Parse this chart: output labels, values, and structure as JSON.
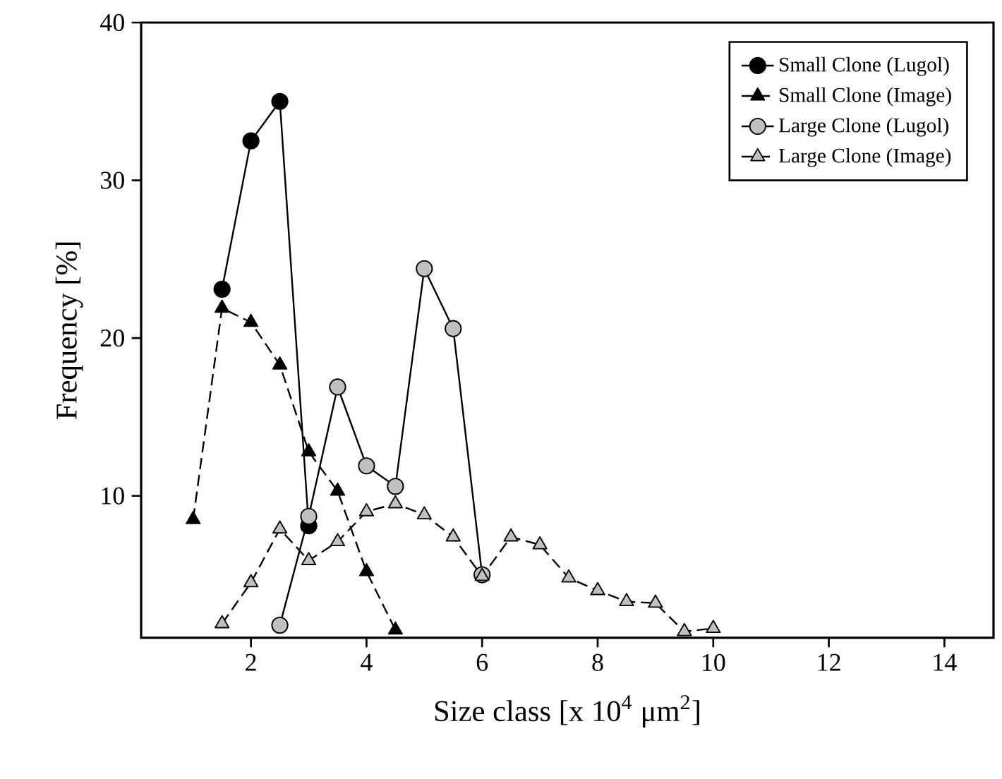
{
  "chart_data": {
    "type": "line",
    "xlabel": "Size class   [x 10$^{4}$ μm$^{2}$]",
    "ylabel": "Frequency   [%]",
    "xlim": [
      0.1,
      14.85
    ],
    "ylim": [
      1,
      40
    ],
    "xticks": [
      2,
      4,
      6,
      8,
      10,
      12,
      14
    ],
    "yticks": [
      10,
      20,
      30,
      40
    ],
    "legend": "top right",
    "grid": false,
    "series": [
      {
        "name": "Small Clone (Lugol)",
        "color": "#000000",
        "marker": "circle",
        "line_style": "solid",
        "x": [
          1.5,
          2,
          2.5,
          3
        ],
        "values": [
          23.1,
          32.5,
          35.0,
          8.1
        ]
      },
      {
        "name": "Small Clone (Image)",
        "color": "#000000",
        "marker": "triangle",
        "line_style": "dashed",
        "x": [
          1,
          1.5,
          2,
          2.5,
          3,
          3.5,
          4,
          4.5
        ],
        "values": [
          8.5,
          21.9,
          21.0,
          18.3,
          12.8,
          10.3,
          5.2,
          1.5
        ]
      },
      {
        "name": "Large Clone (Lugol)",
        "color": "#c0c0c0",
        "marker": "circle",
        "line_style": "solid",
        "x": [
          2.5,
          3,
          3.5,
          4,
          4.5,
          5,
          5.5,
          6
        ],
        "values": [
          1.8,
          8.7,
          16.9,
          11.9,
          10.6,
          24.4,
          20.6,
          5.0
        ]
      },
      {
        "name": "Large Clone (Image)",
        "color": "#c0c0c0",
        "marker": "triangle",
        "line_style": "dashed",
        "x": [
          1.5,
          2,
          2.5,
          3,
          3.5,
          4,
          4.5,
          5,
          5.5,
          6,
          6.5,
          7,
          7.5,
          8,
          8.5,
          9,
          9.5,
          10
        ],
        "values": [
          1.9,
          4.5,
          7.9,
          5.9,
          7.1,
          9.0,
          9.5,
          8.8,
          7.4,
          4.9,
          7.4,
          6.9,
          4.8,
          4.0,
          3.3,
          3.2,
          1.4,
          1.6
        ]
      }
    ]
  }
}
